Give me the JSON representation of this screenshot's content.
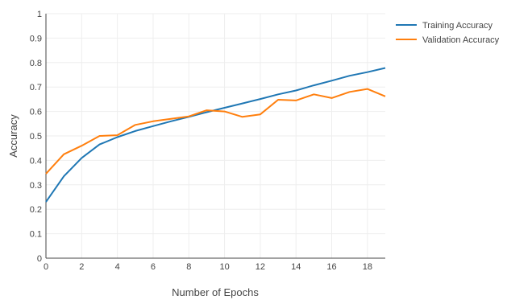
{
  "chart_data": {
    "type": "line",
    "title": "",
    "xlabel": "Number of Epochs",
    "ylabel": "Accuracy",
    "xlim": [
      0,
      19
    ],
    "ylim": [
      0,
      1
    ],
    "x_ticks": [
      0,
      2,
      4,
      6,
      8,
      10,
      12,
      14,
      16,
      18
    ],
    "y_ticks": [
      0,
      0.1,
      0.2,
      0.3,
      0.4,
      0.5,
      0.6,
      0.7,
      0.8,
      0.9,
      1
    ],
    "y_tick_labels": [
      "0",
      "0.1",
      "0.2",
      "0.3",
      "0.4",
      "0.5",
      "0.6",
      "0.7",
      "0.8",
      "0.9",
      "1"
    ],
    "grid": true,
    "legend_position": "top-right",
    "x": [
      0,
      1,
      2,
      3,
      4,
      5,
      6,
      7,
      8,
      9,
      10,
      11,
      12,
      13,
      14,
      15,
      16,
      17,
      18,
      19
    ],
    "series": [
      {
        "name": "Training Accuracy",
        "color": "#1f77b4",
        "values": [
          0.23,
          0.335,
          0.41,
          0.465,
          0.495,
          0.52,
          0.54,
          0.56,
          0.578,
          0.597,
          0.615,
          0.633,
          0.651,
          0.67,
          0.686,
          0.707,
          0.726,
          0.746,
          0.761,
          0.778
        ]
      },
      {
        "name": "Validation Accuracy",
        "color": "#ff7f0e",
        "values": [
          0.345,
          0.425,
          0.46,
          0.5,
          0.503,
          0.545,
          0.56,
          0.57,
          0.58,
          0.605,
          0.6,
          0.578,
          0.588,
          0.648,
          0.645,
          0.67,
          0.655,
          0.68,
          0.692,
          0.662
        ]
      }
    ]
  }
}
